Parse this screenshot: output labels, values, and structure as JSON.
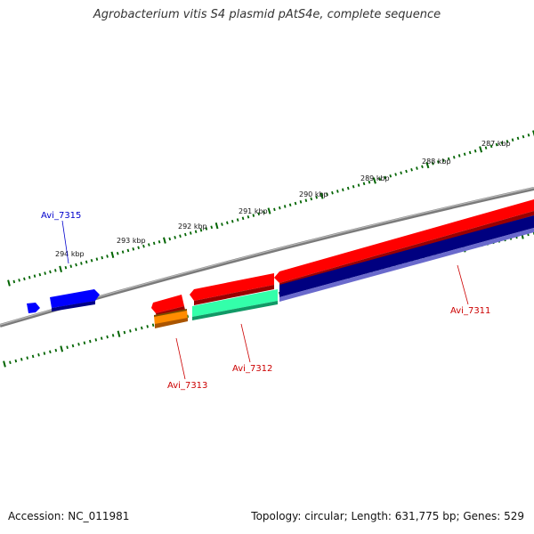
{
  "title": "Agrobacterium vitis S4 plasmid pAtS4e, complete sequence",
  "footer": {
    "accession": "Accession: NC_011981",
    "summary": "Topology: circular; Length: 631,775 bp; Genes: 529"
  },
  "scale": {
    "ticks": [
      "287 kbp",
      "288 kbp",
      "289 kbp",
      "290 kbp",
      "291 kbp",
      "292 kbp",
      "293 kbp",
      "294 kbp"
    ]
  },
  "genes": [
    {
      "label": "Avi_7315",
      "color": "#0000cc"
    },
    {
      "label": "Avi_7313",
      "color": "#cc0000"
    },
    {
      "label": "Avi_7312",
      "color": "#cc0000"
    },
    {
      "label": "Avi_7311",
      "color": "#cc0000"
    }
  ],
  "colors": {
    "backbone": "#808080",
    "tick": "#006400",
    "forward_red": "#ff0000",
    "blue": "#0000ff",
    "orange": "#ff8c00",
    "teal": "#33ffaa",
    "navy": "#000080"
  }
}
